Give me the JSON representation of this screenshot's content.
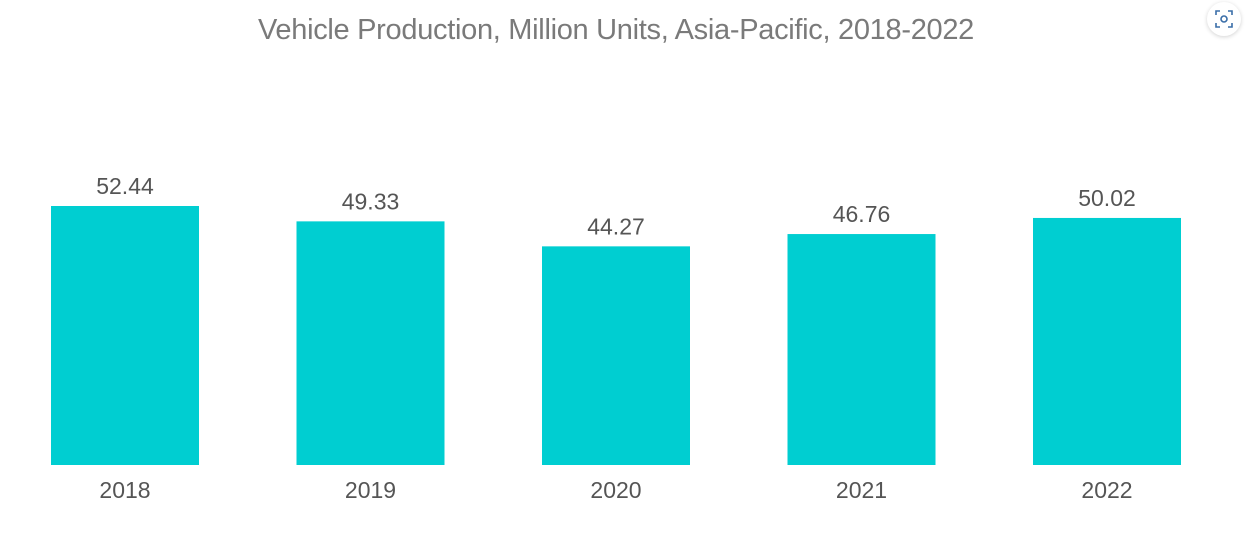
{
  "chart_data": {
    "type": "bar",
    "title": "Vehicle Production, Million Units, Asia-Pacific, 2018-2022",
    "categories": [
      "2018",
      "2019",
      "2020",
      "2021",
      "2022"
    ],
    "values": [
      52.44,
      49.33,
      44.27,
      46.76,
      50.02
    ],
    "value_labels": [
      "52.44",
      "49.33",
      "44.27",
      "46.76",
      "50.02"
    ],
    "xlabel": "",
    "ylabel": "",
    "ylim": [
      0,
      52.44
    ],
    "grid": false,
    "legend": "none",
    "bar_color": "#00CED1"
  },
  "toolbar": {
    "focus_icon": "focus-icon"
  }
}
